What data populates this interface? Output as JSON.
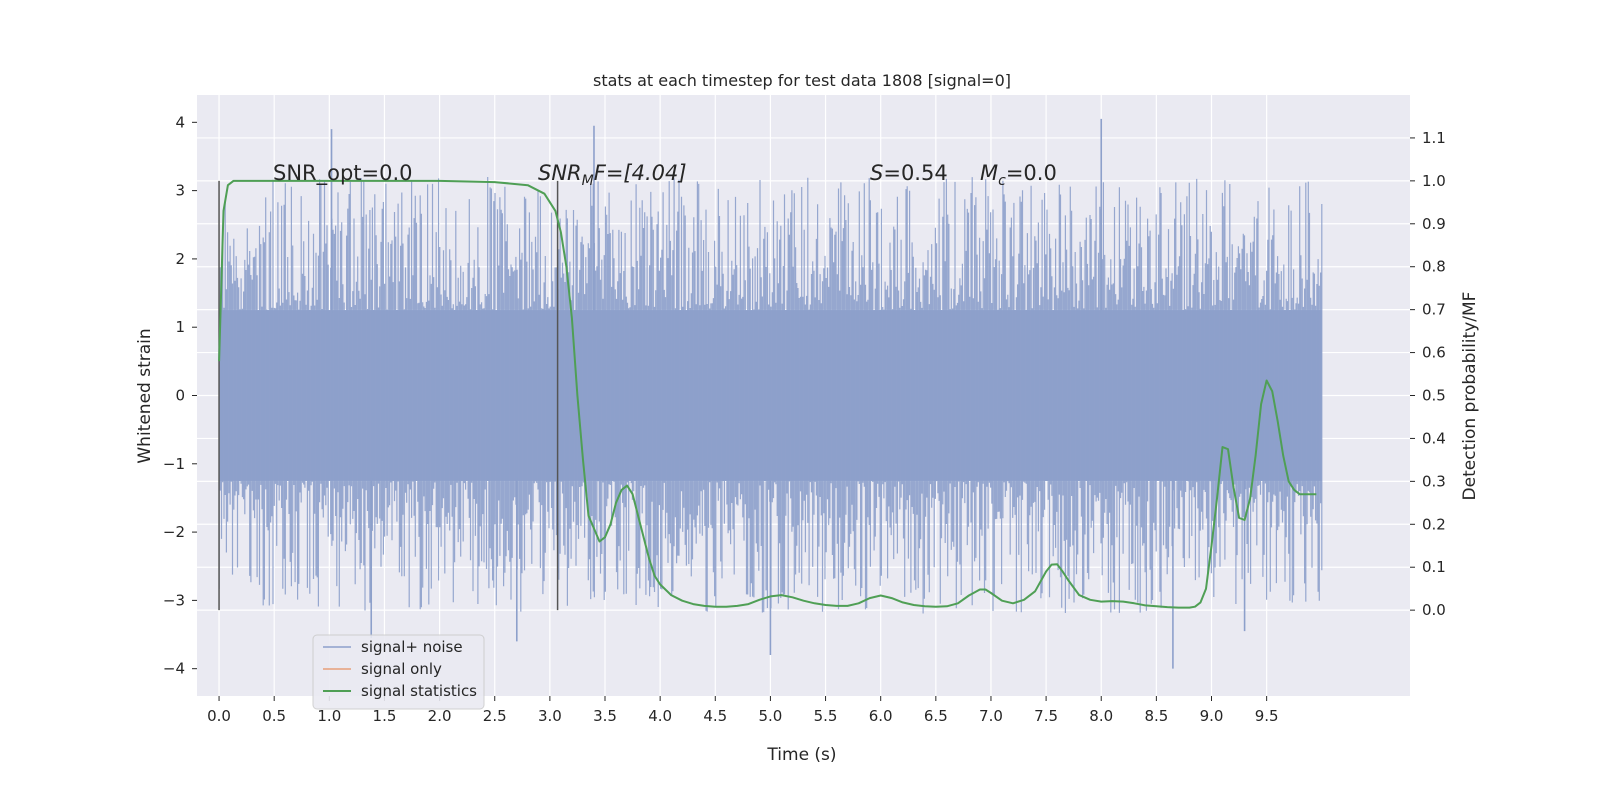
{
  "chart_data": {
    "type": "line",
    "title": "stats at each timestep for test data 1808 [signal=0]",
    "xlabel": "Time (s)",
    "ylabel": "Whitened strain",
    "ylabel_right": "Detection probability/MF",
    "xlim": [
      -0.2,
      10.8
    ],
    "ylim": [
      -4.4,
      4.4
    ],
    "ylim_right": [
      -0.2,
      1.2
    ],
    "x_ticks": [
      "0.0",
      "0.5",
      "1.0",
      "1.5",
      "2.0",
      "2.5",
      "3.0",
      "3.5",
      "4.0",
      "4.5",
      "5.0",
      "5.5",
      "6.0",
      "6.5",
      "7.0",
      "7.5",
      "8.0",
      "8.5",
      "9.0",
      "9.5"
    ],
    "y_ticks": [
      "4",
      "3",
      "2",
      "1",
      "0",
      "−1",
      "−2",
      "−3",
      "−4"
    ],
    "y_ticks_right": [
      "1.1",
      "1.0",
      "0.9",
      "0.8",
      "0.7",
      "0.6",
      "0.5",
      "0.4",
      "0.3",
      "0.2",
      "0.1",
      "0.0"
    ],
    "grid": true,
    "legend_position": "lower-left",
    "annotations": {
      "snr_opt": "SNR_opt=0.0",
      "snr_mf_base": "SNR",
      "snr_mf_sub": "M",
      "snr_mf_rest": "F=[4.04]",
      "s_label": "S",
      "s_value": "=0.54",
      "mc_label": "M",
      "mc_sub": "c",
      "mc_value": "=0.0"
    },
    "vertical_markers": [
      0.0,
      3.07
    ],
    "series": [
      {
        "name": "signal+ noise",
        "color": "#8da0cb",
        "x_range": [
          0.0,
          10.0
        ],
        "envelope": {
          "dense_band": [
            -1.25,
            1.25
          ],
          "typical_peak": [
            -2.6,
            2.6
          ],
          "extreme_peaks": [
            {
              "x": 1.02,
              "y": 3.9
            },
            {
              "x": 3.4,
              "y": 3.95
            },
            {
              "x": 8.0,
              "y": 4.05
            },
            {
              "x": 5.0,
              "y": -3.8
            },
            {
              "x": 8.65,
              "y": -4.0
            },
            {
              "x": 2.7,
              "y": -3.6
            },
            {
              "x": 1.38,
              "y": -3.55
            },
            {
              "x": 9.3,
              "y": -3.45
            }
          ]
        }
      },
      {
        "name": "signal only",
        "color": "#e8a07a",
        "x": [],
        "y": []
      },
      {
        "name": "signal statistics",
        "color": "#4f9f55",
        "axis": "right",
        "x": [
          0.0,
          0.04,
          0.08,
          0.13,
          0.2,
          0.3,
          0.5,
          1.0,
          2.0,
          2.5,
          2.8,
          2.95,
          3.05,
          3.1,
          3.15,
          3.2,
          3.25,
          3.3,
          3.35,
          3.4,
          3.45,
          3.5,
          3.55,
          3.6,
          3.65,
          3.7,
          3.75,
          3.8,
          3.85,
          3.9,
          3.95,
          4.0,
          4.1,
          4.2,
          4.3,
          4.4,
          4.5,
          4.6,
          4.7,
          4.8,
          4.9,
          5.0,
          5.1,
          5.2,
          5.3,
          5.4,
          5.5,
          5.6,
          5.7,
          5.8,
          5.9,
          6.0,
          6.1,
          6.2,
          6.3,
          6.4,
          6.5,
          6.6,
          6.7,
          6.8,
          6.9,
          6.95,
          7.0,
          7.1,
          7.2,
          7.3,
          7.4,
          7.5,
          7.55,
          7.6,
          7.65,
          7.7,
          7.8,
          7.9,
          8.0,
          8.1,
          8.2,
          8.3,
          8.4,
          8.5,
          8.6,
          8.7,
          8.8,
          8.85,
          8.9,
          8.95,
          9.0,
          9.05,
          9.1,
          9.15,
          9.2,
          9.25,
          9.3,
          9.35,
          9.4,
          9.45,
          9.5,
          9.55,
          9.6,
          9.65,
          9.7,
          9.75,
          9.8,
          9.85,
          9.9,
          9.95
        ],
        "y": [
          0.58,
          0.93,
          0.99,
          1.0,
          1.0,
          1.0,
          1.0,
          1.0,
          1.0,
          0.997,
          0.99,
          0.97,
          0.93,
          0.88,
          0.8,
          0.68,
          0.5,
          0.35,
          0.22,
          0.19,
          0.16,
          0.17,
          0.2,
          0.25,
          0.28,
          0.29,
          0.27,
          0.22,
          0.17,
          0.12,
          0.08,
          0.06,
          0.035,
          0.022,
          0.014,
          0.01,
          0.008,
          0.008,
          0.01,
          0.014,
          0.024,
          0.032,
          0.035,
          0.03,
          0.022,
          0.016,
          0.012,
          0.01,
          0.01,
          0.016,
          0.028,
          0.034,
          0.028,
          0.018,
          0.012,
          0.009,
          0.008,
          0.009,
          0.016,
          0.034,
          0.048,
          0.048,
          0.04,
          0.022,
          0.016,
          0.024,
          0.044,
          0.09,
          0.106,
          0.107,
          0.09,
          0.07,
          0.035,
          0.024,
          0.02,
          0.021,
          0.02,
          0.016,
          0.011,
          0.009,
          0.007,
          0.006,
          0.006,
          0.008,
          0.018,
          0.05,
          0.15,
          0.26,
          0.38,
          0.375,
          0.285,
          0.215,
          0.21,
          0.26,
          0.36,
          0.48,
          0.535,
          0.51,
          0.44,
          0.36,
          0.3,
          0.28,
          0.27,
          0.27,
          0.27,
          0.27
        ]
      }
    ]
  }
}
